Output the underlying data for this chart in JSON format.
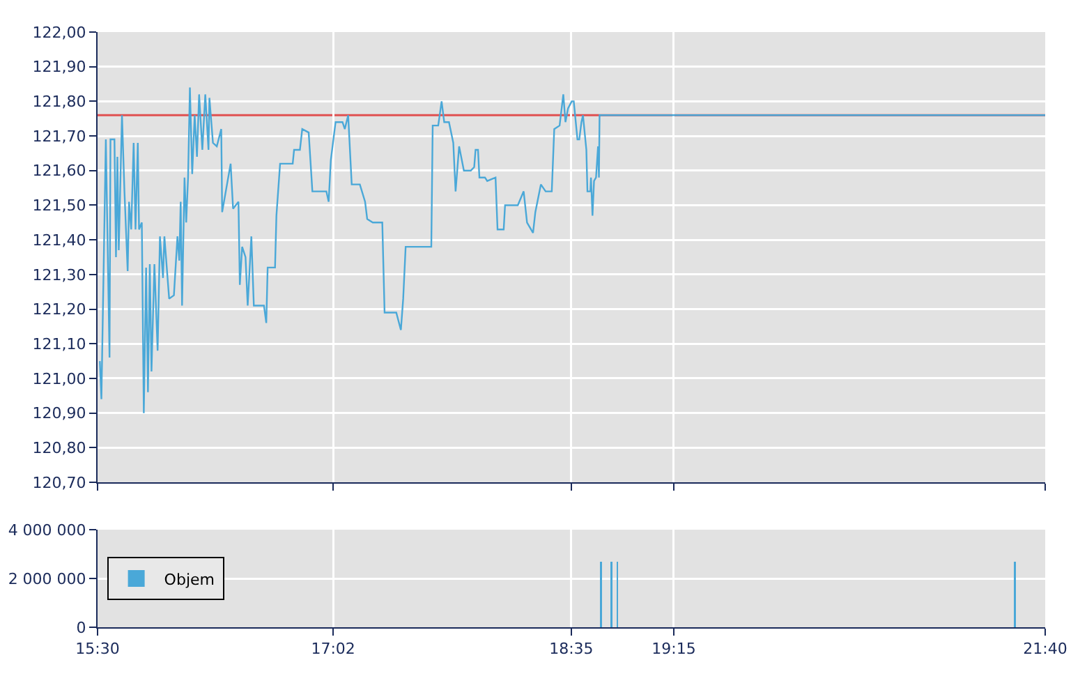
{
  "chart_data": [
    {
      "type": "line",
      "xlim": [
        15.5,
        21.667
      ],
      "xticks": [
        {
          "value": 15.5,
          "label": null
        },
        {
          "value": 17.033,
          "label": null
        },
        {
          "value": 18.583,
          "label": null
        },
        {
          "value": 19.25,
          "label": null
        },
        {
          "value": 21.667,
          "label": null
        }
      ],
      "ylim": [
        120.7,
        122
      ],
      "yticks": [
        {
          "value": 120.7,
          "label": "120,70"
        },
        {
          "value": 120.8,
          "label": "120,80"
        },
        {
          "value": 120.9,
          "label": "120,90"
        },
        {
          "value": 121,
          "label": "121,00"
        },
        {
          "value": 121.1,
          "label": "121,10"
        },
        {
          "value": 121.2,
          "label": "121,20"
        },
        {
          "value": 121.3,
          "label": "121,30"
        },
        {
          "value": 121.4,
          "label": "121,40"
        },
        {
          "value": 121.5,
          "label": "121,50"
        },
        {
          "value": 121.6,
          "label": "121,60"
        },
        {
          "value": 121.7,
          "label": "121,70"
        },
        {
          "value": 121.8,
          "label": "121,80"
        },
        {
          "value": 121.9,
          "label": "121,90"
        },
        {
          "value": 122,
          "label": "122,00"
        }
      ],
      "grid": true,
      "tick_labels": "y",
      "ref_lines": [
        {
          "axis": "y",
          "value": 121.76,
          "color": "#e05050"
        }
      ],
      "series": [
        {
          "color": "#4aa8d8",
          "x": [
            15.515,
            15.525,
            15.554,
            15.578,
            15.584,
            15.61,
            15.62,
            15.629,
            15.638,
            15.659,
            15.675,
            15.696,
            15.705,
            15.719,
            15.735,
            15.747,
            15.762,
            15.77,
            15.788,
            15.801,
            15.816,
            15.828,
            15.84,
            15.851,
            15.87,
            15.891,
            15.906,
            15.926,
            15.935,
            15.966,
            15.997,
            16.02,
            16.032,
            16.041,
            16.05,
            16.066,
            16.077,
            16.089,
            16.101,
            16.116,
            16.132,
            16.147,
            16.161,
            16.182,
            16.201,
            16.222,
            16.228,
            16.251,
            16.276,
            16.305,
            16.311,
            16.366,
            16.382,
            16.417,
            16.426,
            16.441,
            16.463,
            16.477,
            16.501,
            16.517,
            16.583,
            16.598,
            16.607,
            16.655,
            16.664,
            16.688,
            16.77,
            16.779,
            16.817,
            16.832,
            16.874,
            16.898,
            16.989,
            17.004,
            17.018,
            17.049,
            17.094,
            17.109,
            17.131,
            17.154,
            17.207,
            17.241,
            17.255,
            17.291,
            17.353,
            17.368,
            17.444,
            17.474,
            17.489,
            17.505,
            17.672,
            17.681,
            17.717,
            17.739,
            17.756,
            17.787,
            17.815,
            17.83,
            17.853,
            17.884,
            17.929,
            17.951,
            17.96,
            17.976,
            17.985,
            18.021,
            18.036,
            18.09,
            18.103,
            18.143,
            18.152,
            18.235,
            18.273,
            18.295,
            18.334,
            18.349,
            18.385,
            18.416,
            18.456,
            18.472,
            18.507,
            18.531,
            18.545,
            18.562,
            18.586,
            18.599,
            18.623,
            18.635,
            18.649,
            18.659,
            18.681,
            18.688,
            18.707,
            18.711,
            18.721,
            18.731,
            18.744,
            18.757,
            18.763,
            18.767,
            21.667
          ],
          "values": [
            121.05,
            120.94,
            121.69,
            121.06,
            121.69,
            121.69,
            121.35,
            121.64,
            121.37,
            121.76,
            121.54,
            121.31,
            121.51,
            121.43,
            121.68,
            121.43,
            121.68,
            121.43,
            121.45,
            120.9,
            121.32,
            120.96,
            121.33,
            121.02,
            121.33,
            121.08,
            121.41,
            121.29,
            121.41,
            121.23,
            121.24,
            121.41,
            121.34,
            121.51,
            121.21,
            121.58,
            121.45,
            121.58,
            121.84,
            121.59,
            121.76,
            121.64,
            121.82,
            121.66,
            121.82,
            121.66,
            121.81,
            121.68,
            121.67,
            121.72,
            121.48,
            121.62,
            121.49,
            121.51,
            121.27,
            121.38,
            121.35,
            121.21,
            121.41,
            121.21,
            121.21,
            121.16,
            121.32,
            121.32,
            121.47,
            121.62,
            121.62,
            121.66,
            121.66,
            121.72,
            121.71,
            121.54,
            121.54,
            121.51,
            121.63,
            121.74,
            121.74,
            121.72,
            121.76,
            121.56,
            121.56,
            121.51,
            121.46,
            121.45,
            121.45,
            121.19,
            121.19,
            121.14,
            121.23,
            121.38,
            121.38,
            121.73,
            121.73,
            121.8,
            121.74,
            121.74,
            121.68,
            121.54,
            121.67,
            121.6,
            121.6,
            121.61,
            121.66,
            121.66,
            121.58,
            121.58,
            121.57,
            121.58,
            121.43,
            121.43,
            121.5,
            121.5,
            121.54,
            121.45,
            121.42,
            121.48,
            121.56,
            121.54,
            121.54,
            121.72,
            121.73,
            121.82,
            121.74,
            121.78,
            121.8,
            121.8,
            121.69,
            121.69,
            121.74,
            121.76,
            121.66,
            121.54,
            121.54,
            121.58,
            121.47,
            121.57,
            121.58,
            121.67,
            121.58,
            121.76,
            121.76
          ]
        }
      ]
    },
    {
      "type": "bar",
      "xlim": [
        15.5,
        21.667
      ],
      "xticks": [
        {
          "value": 15.5,
          "label": "15:30"
        },
        {
          "value": 17.033,
          "label": "17:02"
        },
        {
          "value": 18.583,
          "label": "18:35"
        },
        {
          "value": 19.25,
          "label": "19:15"
        },
        {
          "value": 21.667,
          "label": "21:40"
        }
      ],
      "ylim": [
        0,
        4000000
      ],
      "yticks": [
        0,
        {
          "value": 2000000,
          "label": "2 000 000"
        },
        {
          "value": 4000000,
          "label": "4 000 000"
        }
      ],
      "grid": true,
      "legend": "left",
      "series": [
        {
          "name": "Objem",
          "color": "#4aa8d8",
          "x": [
            18.775,
            18.844,
            18.883,
            21.469
          ],
          "values": [
            2700000,
            2700000,
            2700000,
            2700000
          ]
        }
      ]
    }
  ]
}
